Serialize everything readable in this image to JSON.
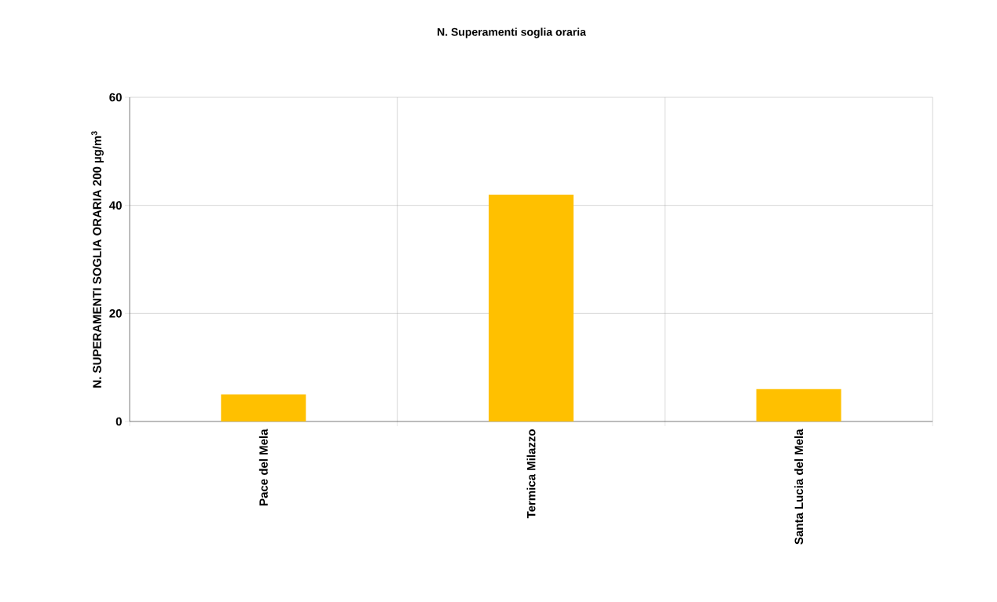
{
  "chart_data": {
    "type": "bar",
    "title": "N. Superamenti soglia oraria",
    "ylabel": "N. SUPERAMENTI SOGLIA ORARIA 200 µg/m$^{3}$",
    "categories": [
      "Pace del Mela",
      "Termica Milazzo",
      "Santa Lucia del Mela"
    ],
    "values": [
      5,
      42,
      6
    ],
    "color": "#ffc000",
    "ylim": [
      0,
      60
    ],
    "yticks": [
      0,
      20,
      40,
      60
    ],
    "grid": true
  }
}
